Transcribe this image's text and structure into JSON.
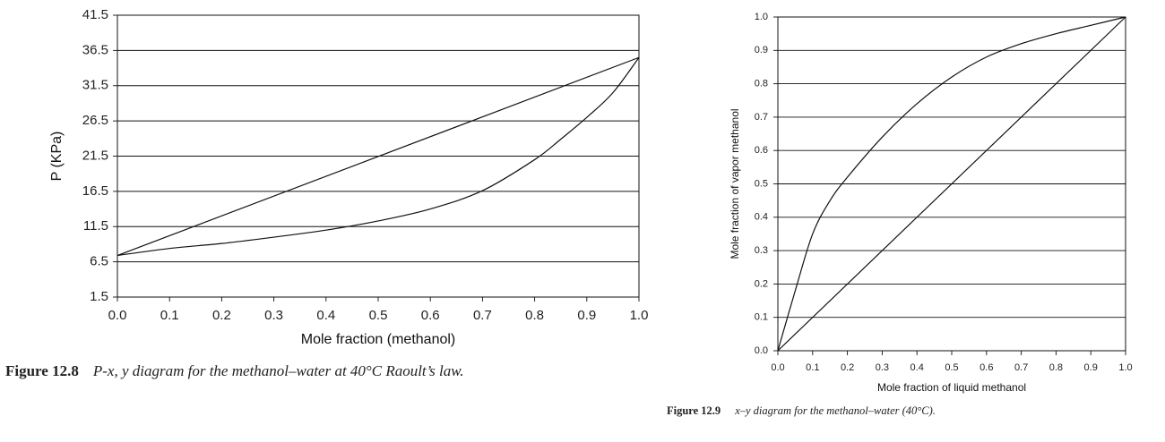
{
  "chart_data": [
    {
      "type": "line",
      "xlabel": "Mole fraction (methanol)",
      "ylabel": "P (KPa)",
      "xlim": [
        0.0,
        1.0
      ],
      "ylim": [
        1.5,
        41.5
      ],
      "xticks": [
        "0.0",
        "0.1",
        "0.2",
        "0.3",
        "0.4",
        "0.5",
        "0.6",
        "0.7",
        "0.8",
        "0.9",
        "1.0"
      ],
      "yticks": [
        "1.5",
        "6.5",
        "11.5",
        "16.5",
        "21.5",
        "26.5",
        "31.5",
        "36.5",
        "41.5"
      ],
      "grid": "horizontal",
      "series": [
        {
          "x": [
            0.0,
            1.0
          ],
          "y": [
            7.4,
            35.5
          ]
        },
        {
          "x": [
            0.0,
            0.1,
            0.2,
            0.3,
            0.4,
            0.5,
            0.6,
            0.7,
            0.8,
            0.85,
            0.9,
            0.95,
            1.0
          ],
          "y": [
            7.4,
            8.4,
            9.1,
            10.0,
            11.0,
            12.3,
            14.0,
            16.6,
            21.0,
            23.9,
            27.0,
            30.5,
            35.5
          ]
        }
      ]
    },
    {
      "type": "line",
      "xlabel": "Mole fraction of liquid methanol",
      "ylabel": "Mole fraction of vapor methanol",
      "xlim": [
        0.0,
        1.0
      ],
      "ylim": [
        0.0,
        1.0
      ],
      "xticks": [
        "0.0",
        "0.1",
        "0.2",
        "0.3",
        "0.4",
        "0.5",
        "0.6",
        "0.7",
        "0.8",
        "0.9",
        "1.0"
      ],
      "yticks": [
        "0.0",
        "0.1",
        "0.2",
        "0.3",
        "0.4",
        "0.5",
        "0.6",
        "0.7",
        "0.8",
        "0.9",
        "1.0"
      ],
      "grid": "horizontal",
      "series": [
        {
          "x": [
            0.0,
            1.0
          ],
          "y": [
            0.0,
            1.0
          ]
        },
        {
          "x": [
            0.0,
            0.05,
            0.1,
            0.15,
            0.2,
            0.3,
            0.4,
            0.5,
            0.6,
            0.7,
            0.8,
            0.9,
            1.0
          ],
          "y": [
            0.0,
            0.18,
            0.35,
            0.45,
            0.52,
            0.64,
            0.74,
            0.82,
            0.88,
            0.92,
            0.95,
            0.975,
            1.0
          ]
        }
      ]
    }
  ],
  "captions": {
    "fig1_label": "Figure 12.8",
    "fig1_text": "P-x, y diagram for the methanol–water at 40°C Raoult’s law.",
    "fig2_label": "Figure 12.9",
    "fig2_text": "x–y diagram for the methanol–water (40°C)."
  }
}
